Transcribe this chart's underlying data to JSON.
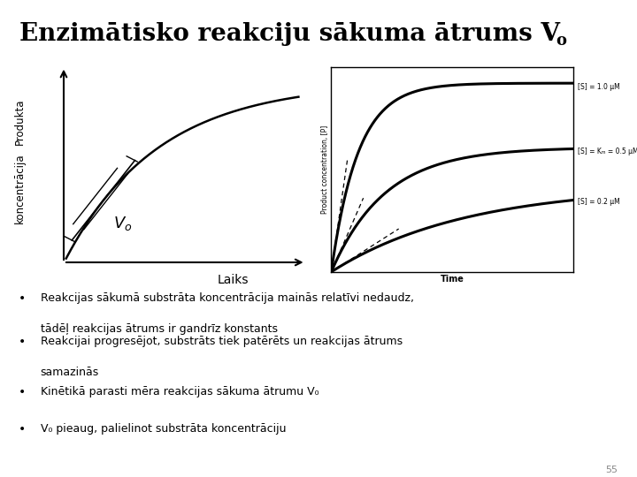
{
  "title_main": "Enzimātisko reakciju sākuma ātrums V",
  "title_sub": "o",
  "background_color": "#ffffff",
  "left_plot": {
    "ylabel_line1": "Produkta",
    "ylabel_line2": "koncentrācija",
    "xlabel": "Laiks",
    "vo_label": "V",
    "vo_sub": "o"
  },
  "right_plot": {
    "ylabel": "Product concentration, [P]",
    "xlabel": "Time",
    "label1": "[S] = 1.0 μM",
    "label2": "[S] = Kₘ = 0.5 μM",
    "label3": "[S] = 0.2 μM",
    "rates": [
      0.9,
      0.45,
      0.18
    ]
  },
  "bullets": [
    "Reakcijas sākumā substrāta koncentrācija mainās relatīvi nedaudz,",
    "tādēļ reakcijas ātrums ir gandrīz konstants",
    "Reakcijai progresējot, substrāts tiek patērēts un reakcijas ātrums",
    "samazinās",
    "Kinētikā parasti mēra reakcijas sākuma ātrumu V₀",
    "V₀ pieaug, palielinot substrāta koncentrāciju"
  ],
  "bullet_groups": [
    {
      "lines": [
        "Reakcijas sākumā substrāta koncentrācija mainās relatīvi nedaudz,",
        "tādēļ reakcijas ātrums ir gandrīz konstants"
      ]
    },
    {
      "lines": [
        "Reakcijai progresējot, substrāts tiek patērēts un reakcijas ātrums",
        "samazinās"
      ]
    },
    {
      "lines": [
        "Kinētikā parasti mēra reakcijas sākuma ātrumu V₀"
      ]
    },
    {
      "lines": [
        "V₀ pieaug, palielinot substrāta koncentrāciju"
      ]
    }
  ],
  "page_number": "55"
}
